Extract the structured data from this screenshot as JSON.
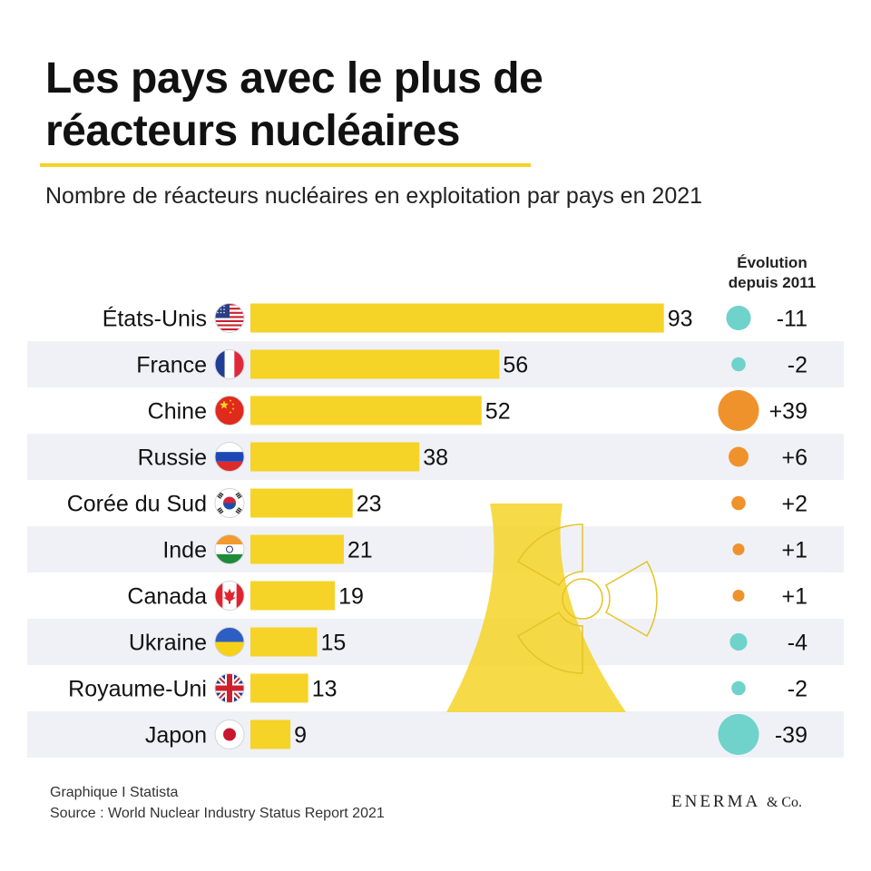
{
  "header": {
    "title_line1": "Les pays avec le plus de",
    "title_line2": "réacteurs nucléaires",
    "subtitle": "Nombre de réacteurs nucléaires en exploitation par pays en 2021"
  },
  "evolution_header": {
    "line1": "Évolution",
    "line2": "depuis 2011"
  },
  "chart_data": {
    "type": "bar",
    "orientation": "horizontal",
    "title": "Les pays avec le plus de réacteurs nucléaires",
    "subtitle": "Nombre de réacteurs nucléaires en exploitation par pays en 2021",
    "categories": [
      "États-Unis",
      "France",
      "Chine",
      "Russie",
      "Corée du Sud",
      "Inde",
      "Canada",
      "Ukraine",
      "Royaume-Uni",
      "Japon"
    ],
    "values": [
      93,
      56,
      52,
      38,
      23,
      21,
      19,
      15,
      13,
      9
    ],
    "value_labels": [
      "93",
      "56",
      "52",
      "38",
      "23",
      "21",
      "19",
      "15",
      "13",
      "9"
    ],
    "change_since_2011": [
      -11,
      -2,
      39,
      6,
      2,
      1,
      1,
      -4,
      -2,
      -39
    ],
    "change_labels": [
      "-11",
      "-2",
      "+39",
      "+6",
      "+2",
      "+1",
      "+1",
      "-4",
      "-2",
      "-39"
    ],
    "flags": [
      "us-flag-icon",
      "france-flag-icon",
      "china-flag-icon",
      "russia-flag-icon",
      "south-korea-flag-icon",
      "india-flag-icon",
      "canada-flag-icon",
      "ukraine-flag-icon",
      "uk-flag-icon",
      "japan-flag-icon"
    ],
    "xlim": [
      0,
      100
    ],
    "colors": {
      "bar": "#f5d327",
      "increase": "#f0922b",
      "decrease": "#6fd2cb",
      "row_band": "#eff1f6",
      "watermark": "#f5d327"
    }
  },
  "footer": {
    "credit": "Graphique I Statista",
    "source": "Source : World Nuclear Industry Status Report 2021"
  },
  "brand": {
    "name": "ENERMA",
    "suffix": "& Co."
  }
}
